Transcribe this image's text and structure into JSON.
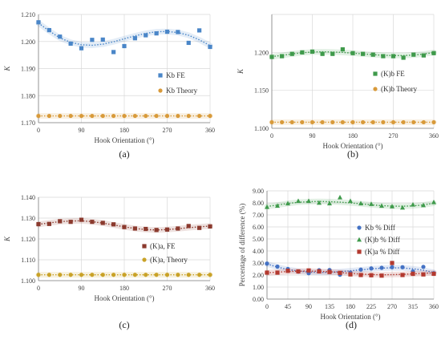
{
  "chart_data": [
    {
      "id": "a",
      "type": "scatter",
      "panel_label": "(a)",
      "xlabel": "Hook Orientation (°)",
      "ylabel": "K",
      "xlim": [
        0,
        360
      ],
      "ylim": [
        1.17,
        1.21
      ],
      "xticks": [
        0,
        90,
        180,
        270,
        360
      ],
      "yticks": [
        1.17,
        1.18,
        1.19,
        1.2,
        1.21
      ],
      "ytick_labels": [
        "1.170",
        "1.180",
        "1.190",
        "1.200",
        "1.210"
      ],
      "grid": true,
      "legend_position": "right-middle",
      "series": [
        {
          "name": "Kb FE",
          "marker": "square",
          "color": "#4a86c8",
          "x": [
            0,
            22.5,
            45,
            67.5,
            90,
            112.5,
            135,
            157.5,
            180,
            202.5,
            225,
            247.5,
            270,
            292.5,
            315,
            337.5,
            360
          ],
          "y": [
            1.2071,
            1.2042,
            1.2018,
            1.1992,
            1.1975,
            1.2006,
            1.2007,
            1.1961,
            1.1983,
            1.2012,
            1.2023,
            1.203,
            1.2036,
            1.2035,
            1.1995,
            1.2041,
            1.198
          ],
          "trend": [
            1.2068,
            1.2039,
            1.2013,
            1.1997,
            1.1988,
            1.1986,
            1.199,
            1.1999,
            1.201,
            1.2021,
            1.203,
            1.2036,
            1.2037,
            1.2033,
            1.2023,
            1.2006,
            1.1985
          ]
        },
        {
          "name": "Kb Theory",
          "marker": "circle",
          "color": "#d89a3a",
          "x": [
            0,
            22.5,
            45,
            67.5,
            90,
            112.5,
            135,
            157.5,
            180,
            202.5,
            225,
            247.5,
            270,
            292.5,
            315,
            337.5,
            360
          ],
          "y": [
            1.1725,
            1.1725,
            1.1725,
            1.1725,
            1.1725,
            1.1725,
            1.1725,
            1.1725,
            1.1725,
            1.1725,
            1.1725,
            1.1725,
            1.1725,
            1.1725,
            1.1725,
            1.1725,
            1.1725
          ],
          "trend": [
            1.1725,
            1.1725,
            1.1725,
            1.1725,
            1.1725,
            1.1725,
            1.1725,
            1.1725,
            1.1725,
            1.1725,
            1.1725,
            1.1725,
            1.1725,
            1.1725,
            1.1725,
            1.1725,
            1.1725
          ]
        }
      ]
    },
    {
      "id": "b",
      "type": "scatter",
      "panel_label": "(b)",
      "xlabel": "Hook Orientation (°)",
      "ylabel": "K",
      "xlim": [
        0,
        360
      ],
      "ylim": [
        1.1,
        1.25
      ],
      "xticks": [
        0,
        90,
        180,
        270,
        360
      ],
      "yticks": [
        1.1,
        1.15,
        1.2,
        1.25
      ],
      "ytick_labels": [
        "1.100",
        "1.150",
        "1.200",
        ""
      ],
      "grid": true,
      "legend_position": "right-middle",
      "series": [
        {
          "name": "(K)b FE",
          "marker": "square",
          "color": "#3f9a4b",
          "x": [
            0,
            22.5,
            45,
            67.5,
            90,
            112.5,
            135,
            157.5,
            180,
            202.5,
            225,
            247.5,
            270,
            292.5,
            315,
            337.5,
            360
          ],
          "y": [
            1.194,
            1.195,
            1.198,
            1.2,
            1.201,
            1.198,
            1.198,
            1.204,
            1.199,
            1.198,
            1.197,
            1.195,
            1.195,
            1.193,
            1.197,
            1.196,
            1.199
          ],
          "trend": [
            1.1945,
            1.196,
            1.198,
            1.1995,
            1.2005,
            1.2008,
            1.2005,
            1.2,
            1.199,
            1.198,
            1.197,
            1.1962,
            1.1958,
            1.1958,
            1.1965,
            1.1978,
            1.1998
          ]
        },
        {
          "name": "(K)b Theory",
          "marker": "circle",
          "color": "#d89a3a",
          "x": [
            0,
            22.5,
            45,
            67.5,
            90,
            112.5,
            135,
            157.5,
            180,
            202.5,
            225,
            247.5,
            270,
            292.5,
            315,
            337.5,
            360
          ],
          "y": [
            1.108,
            1.108,
            1.108,
            1.108,
            1.108,
            1.108,
            1.108,
            1.108,
            1.108,
            1.108,
            1.108,
            1.108,
            1.108,
            1.108,
            1.108,
            1.108,
            1.108
          ],
          "trend": [
            1.108,
            1.108,
            1.108,
            1.108,
            1.108,
            1.108,
            1.108,
            1.108,
            1.108,
            1.108,
            1.108,
            1.108,
            1.108,
            1.108,
            1.108,
            1.108,
            1.108
          ]
        }
      ]
    },
    {
      "id": "c",
      "type": "scatter",
      "panel_label": "(c)",
      "xlabel": "Hook Orientation (°)",
      "ylabel": "K",
      "xlim": [
        0,
        360
      ],
      "ylim": [
        1.1,
        1.14
      ],
      "xticks": [
        0,
        90,
        180,
        270,
        360
      ],
      "yticks": [
        1.1,
        1.11,
        1.12,
        1.13,
        1.14
      ],
      "ytick_labels": [
        "1.100",
        "1.110",
        "1.120",
        "1.130",
        "1.140"
      ],
      "grid": true,
      "legend_position": "right-middle",
      "series": [
        {
          "name": "(K)a, FE",
          "marker": "square",
          "color": "#8b3a2e",
          "x": [
            0,
            22.5,
            45,
            67.5,
            90,
            112.5,
            135,
            157.5,
            180,
            202.5,
            225,
            247.5,
            270,
            292.5,
            315,
            337.5,
            360
          ],
          "y": [
            1.1271,
            1.1272,
            1.1285,
            1.1282,
            1.1292,
            1.1282,
            1.1277,
            1.127,
            1.1257,
            1.125,
            1.1248,
            1.1243,
            1.1245,
            1.125,
            1.1262,
            1.1253,
            1.126
          ],
          "trend": [
            1.127,
            1.1277,
            1.1283,
            1.1286,
            1.1287,
            1.1283,
            1.1276,
            1.1267,
            1.1258,
            1.125,
            1.1245,
            1.1243,
            1.1245,
            1.1249,
            1.1254,
            1.1258,
            1.1262
          ]
        },
        {
          "name": "(K)a, Theory",
          "marker": "circle",
          "color": "#c9a227",
          "x": [
            0,
            22.5,
            45,
            67.5,
            90,
            112.5,
            135,
            157.5,
            180,
            202.5,
            225,
            247.5,
            270,
            292.5,
            315,
            337.5,
            360
          ],
          "y": [
            1.1028,
            1.1028,
            1.1028,
            1.1028,
            1.1028,
            1.1028,
            1.1028,
            1.1028,
            1.1028,
            1.1028,
            1.1028,
            1.1028,
            1.1028,
            1.1028,
            1.1028,
            1.1028,
            1.1028
          ],
          "trend": [
            1.1028,
            1.1028,
            1.1028,
            1.1028,
            1.1028,
            1.1028,
            1.1028,
            1.1028,
            1.1028,
            1.1028,
            1.1028,
            1.1028,
            1.1028,
            1.1028,
            1.1028,
            1.1028,
            1.1028
          ]
        }
      ]
    },
    {
      "id": "d",
      "type": "scatter",
      "panel_label": "(d)",
      "xlabel": "Hook Orientation (°)",
      "ylabel": "Percentage of difference (%)",
      "xlim": [
        0,
        360
      ],
      "ylim": [
        0,
        9
      ],
      "xticks": [
        0,
        45,
        90,
        135,
        180,
        225,
        270,
        315,
        360
      ],
      "yticks": [
        0,
        1,
        2,
        3,
        4,
        5,
        6,
        7,
        8,
        9
      ],
      "ytick_labels": [
        "0.00",
        "1.00",
        "2.00",
        "3.00",
        "4.00",
        "5.00",
        "6.00",
        "7.00",
        "8.00",
        "9.00"
      ],
      "grid": true,
      "legend_position": "right-middle",
      "series": [
        {
          "name": "Kb % Diff",
          "marker": "circle",
          "color": "#4472c4",
          "x": [
            0,
            22.5,
            45,
            67.5,
            90,
            112.5,
            135,
            157.5,
            180,
            202.5,
            225,
            247.5,
            270,
            292.5,
            315,
            337.5,
            360
          ],
          "y": [
            2.95,
            2.7,
            2.5,
            2.28,
            2.15,
            2.4,
            2.42,
            2.02,
            2.2,
            2.45,
            2.55,
            2.6,
            2.65,
            2.65,
            2.3,
            2.68,
            2.15
          ],
          "trend": [
            2.92,
            2.66,
            2.46,
            2.33,
            2.25,
            2.22,
            2.23,
            2.28,
            2.35,
            2.43,
            2.51,
            2.57,
            2.6,
            2.59,
            2.52,
            2.4,
            2.21
          ]
        },
        {
          "name": "(K)b % Diff",
          "marker": "triangle",
          "color": "#3f9a4b",
          "x": [
            0,
            22.5,
            45,
            67.5,
            90,
            112.5,
            135,
            157.5,
            180,
            202.5,
            225,
            247.5,
            270,
            292.5,
            315,
            337.5,
            360
          ],
          "y": [
            7.65,
            7.75,
            7.95,
            8.15,
            8.15,
            8.0,
            7.95,
            8.45,
            8.15,
            7.95,
            7.9,
            7.75,
            7.7,
            7.6,
            7.85,
            7.8,
            8.05
          ],
          "trend": [
            7.7,
            7.82,
            7.95,
            8.05,
            8.1,
            8.12,
            8.1,
            8.06,
            8.0,
            7.92,
            7.84,
            7.77,
            7.73,
            7.72,
            7.75,
            7.83,
            7.97
          ]
        },
        {
          "name": "(K)a % Diff",
          "marker": "square",
          "color": "#b3392f",
          "x": [
            0,
            22.5,
            45,
            67.5,
            90,
            112.5,
            135,
            157.5,
            180,
            202.5,
            225,
            247.5,
            270,
            292.5,
            315,
            337.5,
            360
          ],
          "y": [
            2.2,
            2.2,
            2.35,
            2.3,
            2.38,
            2.3,
            2.25,
            2.18,
            2.05,
            2.0,
            1.98,
            1.95,
            3.0,
            2.0,
            2.1,
            2.05,
            2.1
          ],
          "trend": [
            2.18,
            2.24,
            2.29,
            2.32,
            2.33,
            2.31,
            2.27,
            2.21,
            2.14,
            2.08,
            2.04,
            2.02,
            2.03,
            2.06,
            2.1,
            2.14,
            2.18
          ]
        }
      ]
    }
  ]
}
